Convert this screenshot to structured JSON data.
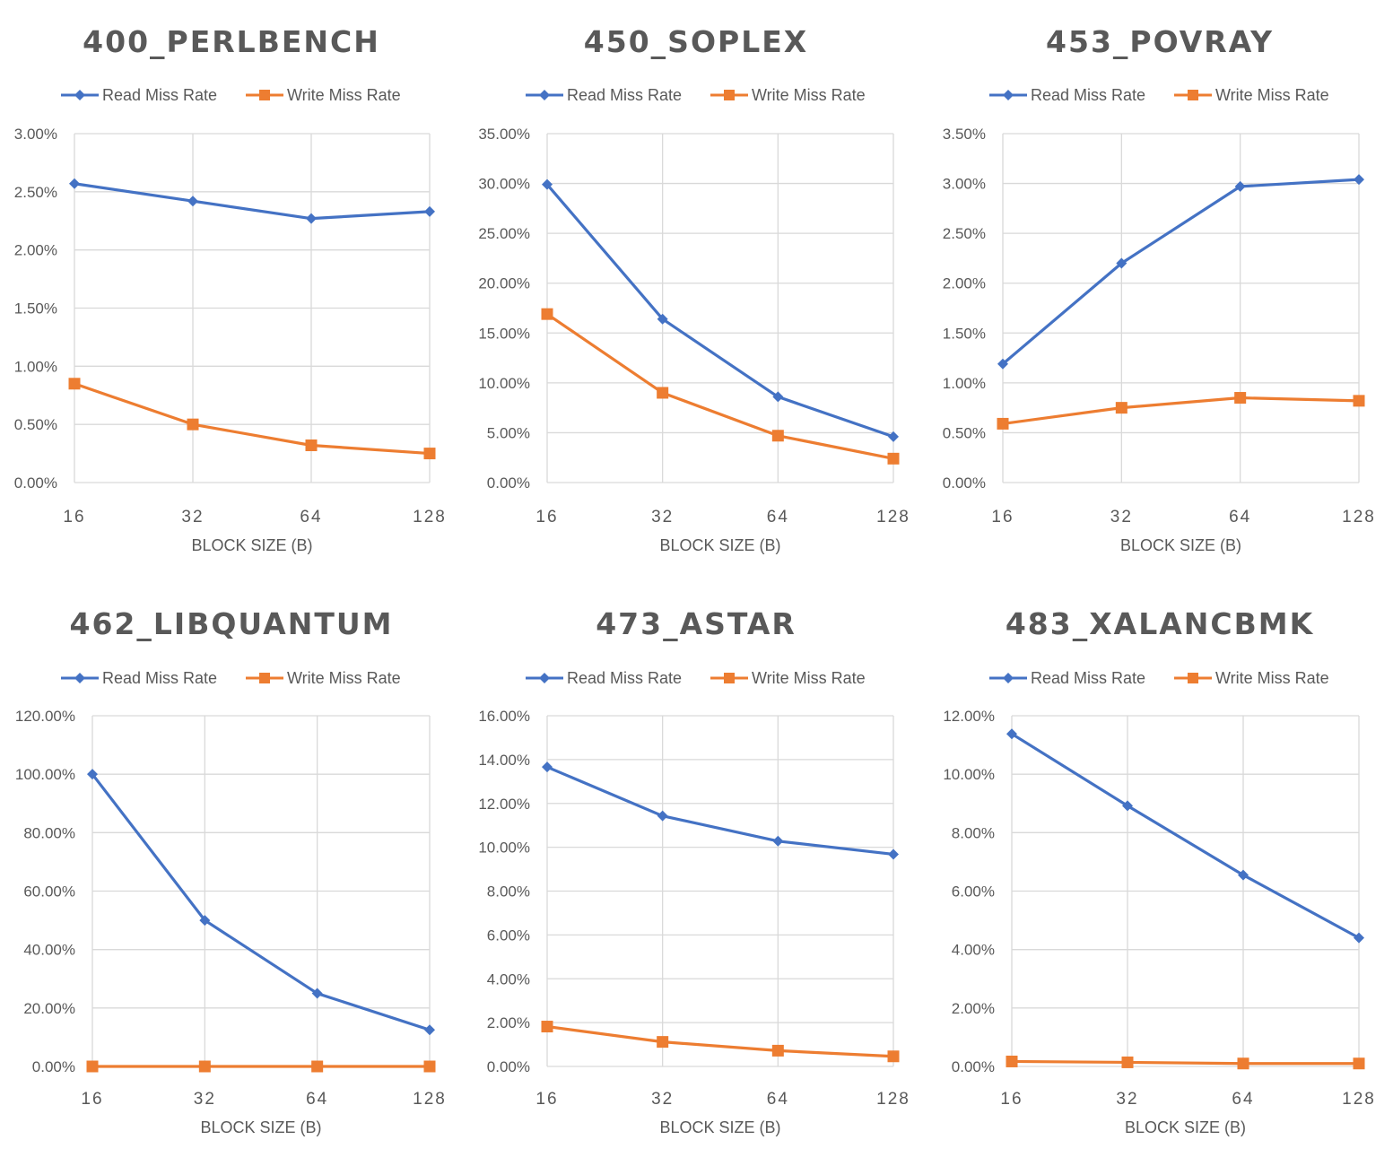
{
  "chart_data": [
    {
      "type": "line",
      "title": "400_PERLBENCH",
      "xlabel": "BLOCK SIZE (B)",
      "categories": [
        "16",
        "32",
        "64",
        "128"
      ],
      "yticks": [
        "0.00%",
        "0.50%",
        "1.00%",
        "1.50%",
        "2.00%",
        "2.50%",
        "3.00%"
      ],
      "ylim": [
        0,
        3
      ],
      "legend_position": "top",
      "grid": true,
      "series": [
        {
          "name": "Read Miss Rate",
          "color": "#4472C4",
          "marker": "diamond",
          "values": [
            2.57,
            2.42,
            2.27,
            2.33
          ]
        },
        {
          "name": "Write Miss Rate",
          "color": "#ED7D31",
          "marker": "square",
          "values": [
            0.85,
            0.5,
            0.32,
            0.25
          ]
        }
      ]
    },
    {
      "type": "line",
      "title": "450_SOPLEX",
      "xlabel": "BLOCK SIZE (B)",
      "categories": [
        "16",
        "32",
        "64",
        "128"
      ],
      "yticks": [
        "0.00%",
        "5.00%",
        "10.00%",
        "15.00%",
        "20.00%",
        "25.00%",
        "30.00%",
        "35.00%"
      ],
      "ylim": [
        0,
        35
      ],
      "legend_position": "top",
      "grid": true,
      "series": [
        {
          "name": "Read Miss Rate",
          "color": "#4472C4",
          "marker": "diamond",
          "values": [
            29.9,
            16.4,
            8.6,
            4.6
          ]
        },
        {
          "name": "Write Miss Rate",
          "color": "#ED7D31",
          "marker": "square",
          "values": [
            16.9,
            9.0,
            4.7,
            2.4
          ]
        }
      ]
    },
    {
      "type": "line",
      "title": "453_POVRAY",
      "xlabel": "BLOCK SIZE (B)",
      "categories": [
        "16",
        "32",
        "64",
        "128"
      ],
      "yticks": [
        "0.00%",
        "0.50%",
        "1.00%",
        "1.50%",
        "2.00%",
        "2.50%",
        "3.00%",
        "3.50%"
      ],
      "ylim": [
        0,
        3.5
      ],
      "legend_position": "top",
      "grid": true,
      "series": [
        {
          "name": "Read Miss Rate",
          "color": "#4472C4",
          "marker": "diamond",
          "values": [
            1.19,
            2.2,
            2.97,
            3.04
          ]
        },
        {
          "name": "Write Miss Rate",
          "color": "#ED7D31",
          "marker": "square",
          "values": [
            0.59,
            0.75,
            0.85,
            0.82
          ]
        }
      ]
    },
    {
      "type": "line",
      "title": "462_LIBQUANTUM",
      "xlabel": "BLOCK SIZE (B)",
      "categories": [
        "16",
        "32",
        "64",
        "128"
      ],
      "yticks": [
        "0.00%",
        "20.00%",
        "40.00%",
        "60.00%",
        "80.00%",
        "100.00%",
        "120.00%"
      ],
      "ylim": [
        0,
        120
      ],
      "legend_position": "top",
      "grid": true,
      "series": [
        {
          "name": "Read Miss Rate",
          "color": "#4472C4",
          "marker": "diamond",
          "values": [
            100.0,
            50.0,
            25.0,
            12.5
          ]
        },
        {
          "name": "Write Miss Rate",
          "color": "#ED7D31",
          "marker": "square",
          "values": [
            0.0,
            0.0,
            0.0,
            0.0
          ]
        }
      ]
    },
    {
      "type": "line",
      "title": "473_ASTAR",
      "xlabel": "BLOCK SIZE (B)",
      "categories": [
        "16",
        "32",
        "64",
        "128"
      ],
      "yticks": [
        "0.00%",
        "2.00%",
        "4.00%",
        "6.00%",
        "8.00%",
        "10.00%",
        "12.00%",
        "14.00%",
        "16.00%"
      ],
      "ylim": [
        0,
        16
      ],
      "legend_position": "top",
      "grid": true,
      "series": [
        {
          "name": "Read Miss Rate",
          "color": "#4472C4",
          "marker": "diamond",
          "values": [
            13.66,
            11.43,
            10.28,
            9.68
          ]
        },
        {
          "name": "Write Miss Rate",
          "color": "#ED7D31",
          "marker": "square",
          "values": [
            1.82,
            1.12,
            0.72,
            0.46
          ]
        }
      ]
    },
    {
      "type": "line",
      "title": "483_XALANCBMK",
      "xlabel": "BLOCK SIZE (B)",
      "categories": [
        "16",
        "32",
        "64",
        "128"
      ],
      "yticks": [
        "0.00%",
        "2.00%",
        "4.00%",
        "6.00%",
        "8.00%",
        "10.00%",
        "12.00%"
      ],
      "ylim": [
        0,
        12
      ],
      "legend_position": "top",
      "grid": true,
      "series": [
        {
          "name": "Read Miss Rate",
          "color": "#4472C4",
          "marker": "diamond",
          "values": [
            11.38,
            8.92,
            6.55,
            4.4
          ]
        },
        {
          "name": "Write Miss Rate",
          "color": "#ED7D31",
          "marker": "square",
          "values": [
            0.17,
            0.14,
            0.1,
            0.1
          ]
        }
      ]
    }
  ]
}
